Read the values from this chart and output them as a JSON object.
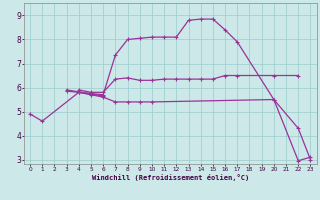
{
  "xlabel": "Windchill (Refroidissement éolien,°C)",
  "bg_color": "#cce8e8",
  "grid_color": "#99cccc",
  "line_color": "#993399",
  "x_min": -0.5,
  "x_max": 23.5,
  "y_min": 2.8,
  "y_max": 9.5,
  "yticks": [
    3,
    4,
    5,
    6,
    7,
    8,
    9
  ],
  "xticks": [
    0,
    1,
    2,
    3,
    4,
    5,
    6,
    7,
    8,
    9,
    10,
    11,
    12,
    13,
    14,
    15,
    16,
    17,
    18,
    19,
    20,
    21,
    22,
    23
  ],
  "curve1": {
    "x": [
      0,
      1,
      4,
      5,
      6,
      7,
      8,
      9,
      10,
      20,
      22,
      23
    ],
    "y": [
      4.9,
      4.6,
      5.8,
      5.7,
      5.6,
      5.4,
      5.4,
      5.4,
      5.4,
      5.5,
      4.3,
      3.0
    ]
  },
  "curve2": {
    "x": [
      4,
      5,
      6,
      7,
      8,
      9,
      10,
      11,
      12,
      13,
      14,
      15,
      16,
      17,
      20,
      22
    ],
    "y": [
      5.9,
      5.8,
      5.8,
      6.35,
      6.4,
      6.3,
      6.3,
      6.35,
      6.35,
      6.35,
      6.35,
      6.35,
      6.5,
      6.5,
      6.5,
      6.5
    ]
  },
  "curve3": {
    "x": [
      3,
      4,
      5,
      6,
      7,
      8,
      9,
      10,
      11,
      12,
      13,
      14,
      15,
      16,
      17,
      20,
      22,
      23
    ],
    "y": [
      5.9,
      5.82,
      5.75,
      5.7,
      7.35,
      8.0,
      8.05,
      8.1,
      8.1,
      8.1,
      8.8,
      8.85,
      8.85,
      8.4,
      7.9,
      5.5,
      2.95,
      3.1
    ]
  },
  "curve4": {
    "x": [
      3,
      4,
      5,
      6
    ],
    "y": [
      5.85,
      5.8,
      5.72,
      5.65
    ]
  }
}
